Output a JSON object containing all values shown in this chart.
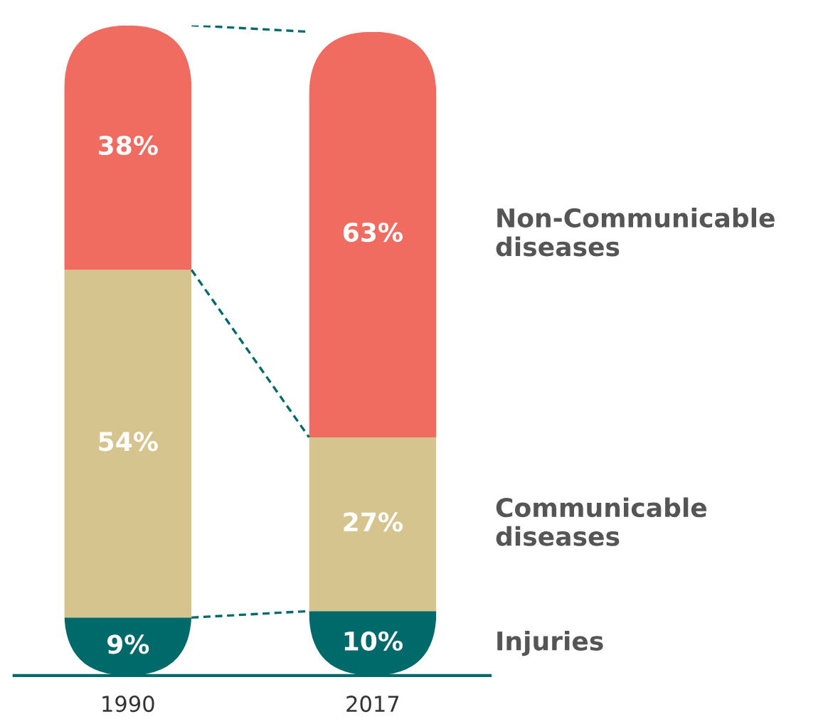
{
  "chart_data": {
    "type": "bar",
    "stacked": true,
    "grid": false,
    "legend": false,
    "categories": [
      "1990",
      "2017"
    ],
    "series": [
      {
        "name": "Injuries",
        "color": "#00696a",
        "values": [
          9,
          10
        ],
        "value_labels": [
          "9%",
          "10%"
        ]
      },
      {
        "name": "Communicable diseases",
        "color": "#d6c48f",
        "values": [
          54,
          27
        ],
        "value_labels": [
          "54%",
          "27%"
        ]
      },
      {
        "name": "Non-Communicable diseases",
        "color": "#f06b60",
        "values": [
          38,
          63
        ],
        "value_labels": [
          "38%",
          "63%"
        ]
      }
    ]
  }
}
